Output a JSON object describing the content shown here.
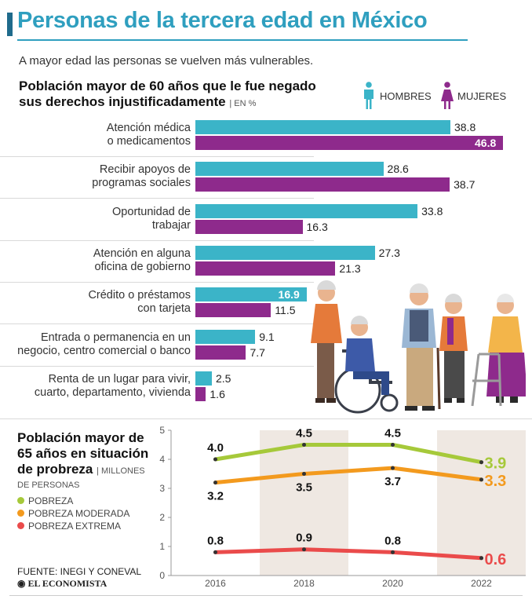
{
  "title": "Personas de la tercera edad en México",
  "subtitle": "A mayor edad las personas se vuelven más vulnerables.",
  "section1": {
    "heading_line1": "Población mayor de 60 años que le fue negado",
    "heading_line2": "sus derechos injustificadamente",
    "unit": "| EN %"
  },
  "section2": {
    "heading_line1": "Población mayor de",
    "heading_line2": "65 años en situación",
    "heading_line3": "de probreza",
    "unit": "| MILLONES",
    "unit2": "DE PERSONAS"
  },
  "source": "FUENTE: INEGI Y CONEVAL",
  "brand": "EL ECONOMISTA",
  "chart_data": [
    {
      "type": "bar",
      "orientation": "horizontal",
      "title": "Población mayor de 60 años que le fue negado sus derechos injustificadamente",
      "units": "%",
      "categories": [
        "Atención médica\no medicamentos",
        "Recibir apoyos de\nprogramas sociales",
        "Oportunidad de\ntrabajar",
        "Atención en alguna\noficina de gobierno",
        "Crédito o préstamos\ncon tarjeta",
        "Entrada o permanencia en un\nnegocio, centro comercial o banco",
        "Renta de un lugar para vivir,\ncuarto, departamento, vivienda"
      ],
      "series": [
        {
          "name": "HOMBRES",
          "color": "#3bb4c8",
          "values": [
            38.8,
            28.6,
            33.8,
            27.3,
            16.9,
            9.1,
            2.5
          ],
          "labels": [
            "38.8",
            "28.6",
            "33.8",
            "27.3",
            "16.9",
            "9.1",
            "2.5"
          ]
        },
        {
          "name": "MUJERES",
          "color": "#8e2a8c",
          "values": [
            46.8,
            38.7,
            16.3,
            21.3,
            11.5,
            7.7,
            1.6
          ],
          "labels": [
            "46.8",
            "38.7",
            "16.3",
            "21.3",
            "11.5",
            "7.7",
            "1.6"
          ]
        }
      ],
      "xlim": [
        0,
        46.8
      ],
      "legend": "top-right"
    },
    {
      "type": "line",
      "title": "Población mayor de 65 años en situación de probreza",
      "units": "MILLONES DE PERSONAS",
      "x": [
        "2016",
        "2018",
        "2020",
        "2022"
      ],
      "ylim": [
        0,
        5
      ],
      "yticks": [
        "0",
        "1",
        "2",
        "3",
        "4",
        "5"
      ],
      "series": [
        {
          "name": "POBREZA",
          "color": "#a6c93a",
          "values": [
            4.0,
            4.5,
            4.5,
            3.9
          ],
          "labels": [
            "4.0",
            "4.5",
            "4.5",
            "3.9"
          ]
        },
        {
          "name": "POBREZA MODERADA",
          "color": "#f39a1e",
          "values": [
            3.2,
            3.5,
            3.7,
            3.3
          ],
          "labels": [
            "3.2",
            "3.5",
            "3.7",
            "3.3"
          ]
        },
        {
          "name": "POBREZA EXTREMA",
          "color": "#ea4b4b",
          "values": [
            0.8,
            0.9,
            0.8,
            0.6
          ],
          "labels": [
            "0.8",
            "0.9",
            "0.8",
            "0.6"
          ]
        }
      ],
      "legend": "left"
    }
  ]
}
